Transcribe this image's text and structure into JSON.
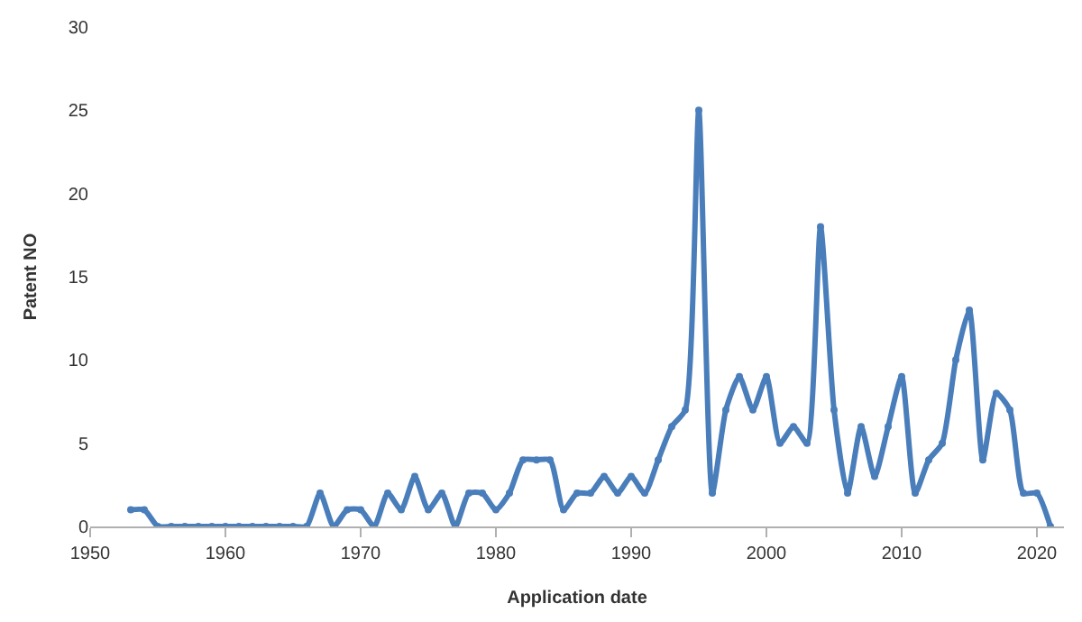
{
  "chart_data": {
    "type": "line",
    "xlabel": "Application date",
    "ylabel": "Patent NO",
    "x": [
      1953,
      1954,
      1955,
      1956,
      1957,
      1958,
      1959,
      1960,
      1961,
      1962,
      1963,
      1964,
      1965,
      1966,
      1967,
      1968,
      1969,
      1970,
      1971,
      1972,
      1973,
      1974,
      1975,
      1976,
      1977,
      1978,
      1979,
      1980,
      1981,
      1982,
      1983,
      1984,
      1985,
      1986,
      1987,
      1988,
      1989,
      1990,
      1991,
      1992,
      1993,
      1994,
      1995,
      1996,
      1997,
      1998,
      1999,
      2000,
      2001,
      2002,
      2003,
      2004,
      2005,
      2006,
      2007,
      2008,
      2009,
      2010,
      2011,
      2012,
      2013,
      2014,
      2015,
      2016,
      2017,
      2018,
      2019,
      2020,
      2021
    ],
    "series": [
      {
        "color": "#4a7ebb",
        "values": [
          1,
          1,
          0,
          0,
          0,
          0,
          0,
          0,
          0,
          0,
          0,
          0,
          0,
          0,
          2,
          0,
          1,
          1,
          0,
          2,
          1,
          3,
          1,
          2,
          0,
          2,
          2,
          1,
          2,
          4,
          4,
          4,
          1,
          2,
          2,
          3,
          2,
          3,
          2,
          4,
          6,
          7,
          25,
          2,
          7,
          9,
          7,
          9,
          5,
          6,
          5,
          18,
          7,
          2,
          6,
          3,
          6,
          9,
          2,
          4,
          5,
          10,
          13,
          4,
          8,
          7,
          2,
          2,
          0
        ]
      }
    ],
    "xlim": [
      1950,
      2022
    ],
    "xticks": [
      1950,
      1960,
      1970,
      1980,
      1990,
      2000,
      2010,
      2020
    ],
    "ylim": [
      0,
      30
    ],
    "yticks": [
      0,
      5,
      10,
      15,
      20,
      25,
      30
    ],
    "legend": false,
    "marker": "circle",
    "line_style": "solid"
  }
}
